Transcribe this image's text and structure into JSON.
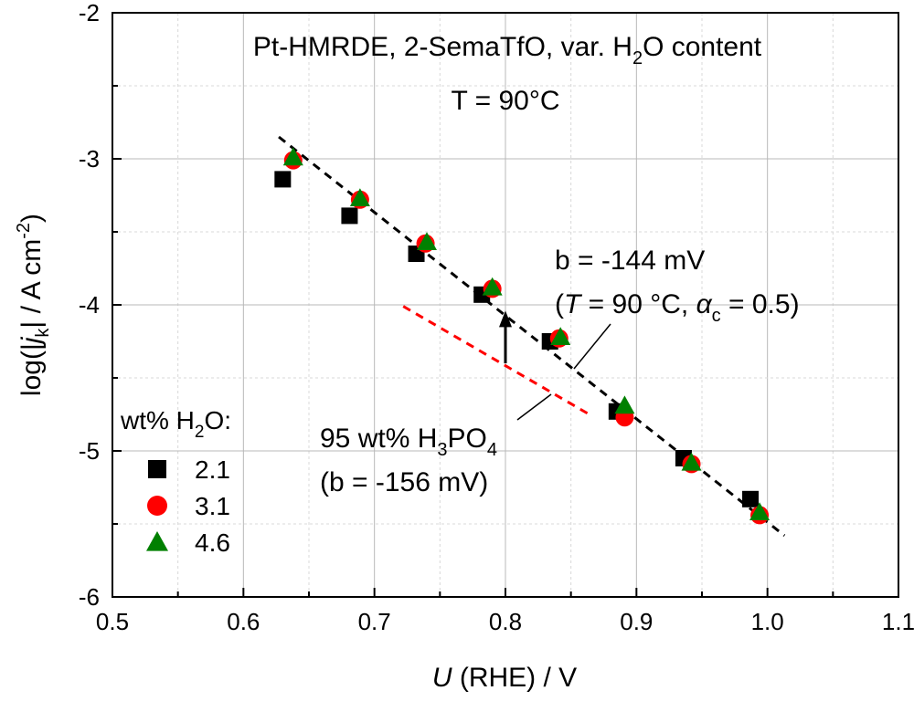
{
  "chart_data": {
    "type": "scatter",
    "title_line1": "Pt-HMRDE, 2-SemaTfO, var. H",
    "title_line1_sub": "2",
    "title_line1_tail": "O content",
    "title_line2": "T = 90°C",
    "xlabel_italic": "U",
    "xlabel_rest": " (RHE) / V",
    "ylabel": {
      "pre": "log(",
      "bar": "|",
      "j": "j",
      "k": "k",
      "post": " / A cm",
      "exp": "-2",
      "close": ")"
    },
    "xlim": [
      0.5,
      1.1
    ],
    "ylim": [
      -6,
      -2
    ],
    "xticks": [
      0.5,
      0.6,
      0.7,
      0.8,
      0.9,
      1.0,
      1.1
    ],
    "xtick_labels": [
      "0.5",
      "0.6",
      "0.7",
      "0.8",
      "0.9",
      "1.0",
      "1.1"
    ],
    "yticks": [
      -6,
      -5,
      -4,
      -3,
      -2
    ],
    "ytick_labels": [
      "-6",
      "-5",
      "-4",
      "-3",
      "-2"
    ],
    "grid": true,
    "legend": {
      "title_pre": "wt% H",
      "title_sub": "2",
      "title_post": "O:",
      "placement": "lower-left",
      "entries": [
        {
          "label": "2.1",
          "marker": "square",
          "color": "#000000"
        },
        {
          "label": "3.1",
          "marker": "circle",
          "color": "#ff0000"
        },
        {
          "label": "4.6",
          "marker": "triangle",
          "color": "#008000"
        }
      ]
    },
    "series": [
      {
        "name": "2.1",
        "marker": "square",
        "color": "#000000",
        "x": [
          0.63,
          0.681,
          0.732,
          0.782,
          0.834,
          0.885,
          0.936,
          0.987
        ],
        "y": [
          -3.14,
          -3.39,
          -3.65,
          -3.93,
          -4.25,
          -4.73,
          -5.05,
          -5.33
        ]
      },
      {
        "name": "3.1",
        "marker": "circle",
        "color": "#ff0000",
        "x": [
          0.638,
          0.689,
          0.739,
          0.79,
          0.841,
          0.891,
          0.942,
          0.994
        ],
        "y": [
          -3.01,
          -3.28,
          -3.58,
          -3.89,
          -4.23,
          -4.77,
          -5.09,
          -5.44
        ]
      },
      {
        "name": "4.6",
        "marker": "triangle",
        "color": "#008000",
        "x": [
          0.638,
          0.689,
          0.74,
          0.79,
          0.842,
          0.891,
          0.942,
          0.994
        ],
        "y": [
          -2.99,
          -3.27,
          -3.57,
          -3.88,
          -4.22,
          -4.69,
          -5.08,
          -5.42
        ]
      }
    ],
    "fit_lines": [
      {
        "color": "#000000",
        "x": [
          0.627,
          1.013
        ],
        "y": [
          -2.85,
          -5.58
        ]
      },
      {
        "color": "#ff0000",
        "x": [
          0.722,
          0.864
        ],
        "y": [
          -4.01,
          -4.75
        ]
      }
    ],
    "arrow": {
      "x": 0.8,
      "y_from": -4.4,
      "y_to": -4.04
    },
    "annotations": {
      "fit_b": "b = -144 mV",
      "cond_open": "(",
      "cond_T": "T",
      "cond_mid": " = 90 °C, ",
      "cond_alpha": "α",
      "cond_c": "c",
      "cond_tail": " = 0.5)",
      "ref_pre": "95 wt% H",
      "ref_sub3": "3",
      "ref_mid": "PO",
      "ref_sub4": "4",
      "ref_b": "(b = -156 mV)"
    }
  }
}
